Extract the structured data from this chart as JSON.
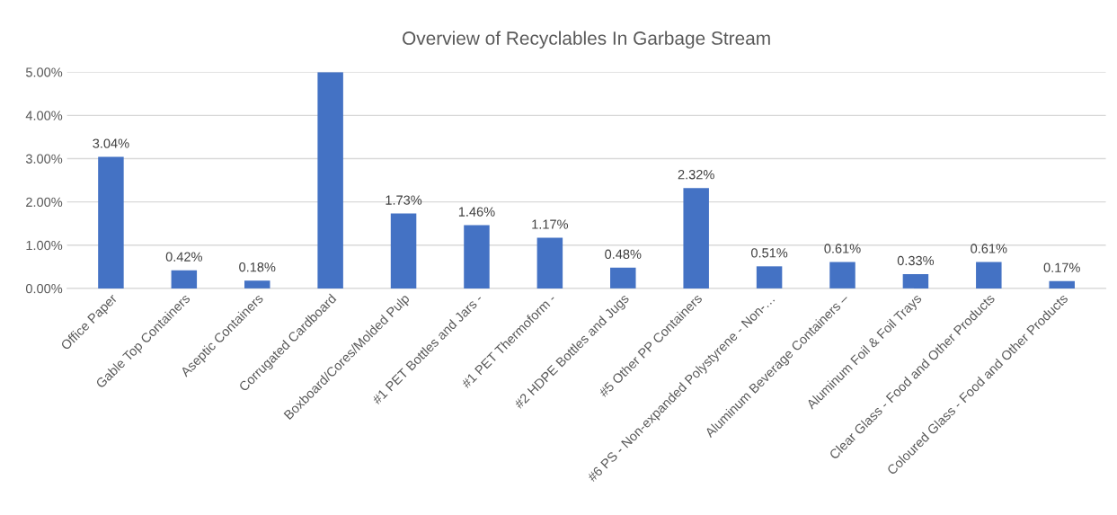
{
  "chart_data": {
    "type": "bar",
    "title": "Overview of Recyclables In Garbage Stream",
    "categories": [
      "Office Paper",
      "Gable Top Containers",
      "Aseptic Containers",
      "Corrugated Cardboard",
      "Boxboard/Cores/Molded Pulp",
      "#1 PET Bottles and Jars -",
      "#1 PET Thermoform -",
      "#2 HDPE Bottles and Jugs",
      "#5 Other PP Containers",
      "#6 PS - Non-expanded Polystyrene - Non-…",
      "Aluminum Beverage Containers –",
      "Aluminum Foil & Foil Trays",
      "Clear Glass - Food and Other Products",
      "Coloured Glass - Food and Other Products"
    ],
    "values": [
      3.04,
      0.42,
      0.18,
      5.0,
      1.73,
      1.46,
      1.17,
      0.48,
      2.32,
      0.51,
      0.61,
      0.33,
      0.61,
      0.17
    ],
    "value_labels": [
      "3.04%",
      "0.42%",
      "0.18%",
      null,
      "1.73%",
      "1.46%",
      "1.17%",
      "0.48%",
      "2.32%",
      "0.51%",
      "0.61%",
      "0.33%",
      "0.61%",
      "0.17%"
    ],
    "color": "#4472c4",
    "ylim": [
      0,
      5
    ],
    "yticks": [
      {
        "value": 0,
        "label": "0.00%"
      },
      {
        "value": 1,
        "label": "1.00%"
      },
      {
        "value": 2,
        "label": "2.00%"
      },
      {
        "value": 3,
        "label": "3.00%"
      },
      {
        "value": 4,
        "label": "4.00%"
      },
      {
        "value": 5,
        "label": "5.00%"
      }
    ],
    "grid": "y"
  }
}
